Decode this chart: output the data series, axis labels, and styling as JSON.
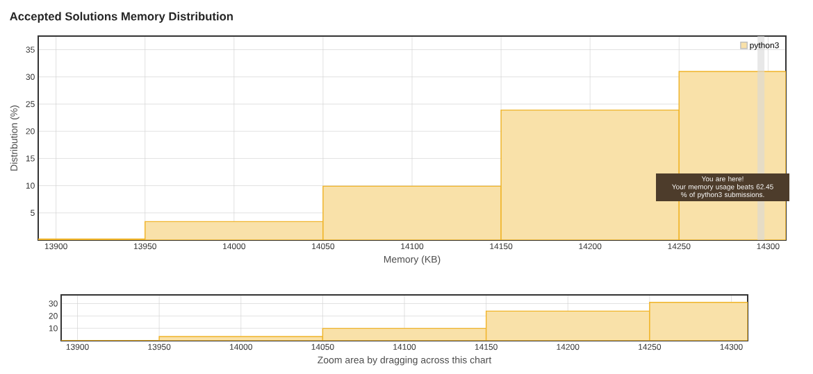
{
  "chart_data": [
    {
      "type": "histogram",
      "title": "Accepted Solutions Memory Distribution",
      "xlabel": "Memory (KB)",
      "ylabel": "Distribution (%)",
      "bins": [
        13890,
        13950,
        14050,
        14150,
        14250,
        14310
      ],
      "series": [
        {
          "name": "python3",
          "color": "#f0b429",
          "values": [
            0.2,
            3.4,
            9.9,
            23.9,
            31.0
          ]
        }
      ],
      "xlim": [
        13890,
        14310
      ],
      "ylim": [
        0,
        37.5
      ],
      "xticks": [
        13900,
        13950,
        14000,
        14050,
        14100,
        14150,
        14200,
        14250,
        14300
      ],
      "yticks": [
        5,
        10,
        15,
        20,
        25,
        30,
        35
      ],
      "ref_lines": [
        {
          "axis": "x",
          "value": 14296,
          "color": "#d9d9d9"
        }
      ],
      "annotations": [
        "You are here!",
        "Your memory usage beats 62.45 % of python3 submissions."
      ],
      "grid": true,
      "legend": "top right"
    },
    {
      "type": "histogram",
      "xlabel": "Zoom area by dragging across this chart",
      "bins": [
        13890,
        13950,
        14050,
        14150,
        14250,
        14310
      ],
      "series": [
        {
          "color": "#f0b429",
          "values": [
            0.2,
            3.4,
            9.9,
            23.9,
            31.0
          ]
        }
      ],
      "xlim": [
        13890,
        14310
      ],
      "ylim": [
        0,
        37
      ],
      "xticks": [
        13900,
        13950,
        14000,
        14050,
        14100,
        14150,
        14200,
        14250,
        14300
      ],
      "yticks": [
        10,
        20,
        30
      ],
      "grid": true
    }
  ]
}
